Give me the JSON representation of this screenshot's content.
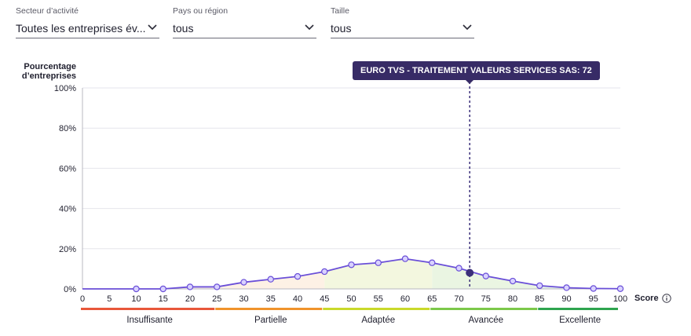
{
  "filters": [
    {
      "label": "Secteur d’activité",
      "value": "Toutes les entreprises év..."
    },
    {
      "label": "Pays ou région",
      "value": "tous"
    },
    {
      "label": "Taille",
      "value": "tous"
    }
  ],
  "tooltip": {
    "text": "EURO TVS - TRAITEMENT VALEURS SERVICES SAS: 72"
  },
  "score_label": "Score",
  "icons": {
    "chevron": "chevron-down-icon",
    "info": "info-icon"
  },
  "colors": {
    "line": "#6a4fd8",
    "marker_fill": "#d9d2ff",
    "highlight": "#3b2f7a",
    "tooltip_bg": "#372b66"
  },
  "chart_data": {
    "type": "area",
    "ylabel": "Pourcentage d’entreprises",
    "xlabel": "Score",
    "ylim": [
      0,
      100
    ],
    "xlim": [
      0,
      100
    ],
    "y_ticks": [
      "0%",
      "20%",
      "40%",
      "60%",
      "80%",
      "100%"
    ],
    "x_ticks": [
      0,
      5,
      10,
      15,
      20,
      25,
      30,
      35,
      40,
      45,
      50,
      55,
      60,
      65,
      70,
      75,
      80,
      85,
      90,
      95,
      100
    ],
    "grid": true,
    "series": [
      {
        "x": [
          0,
          5,
          10,
          15,
          20,
          25,
          30,
          35,
          40,
          45,
          50,
          55,
          60,
          65,
          70,
          75,
          80,
          85,
          90,
          95,
          100
        ],
        "y": [
          0,
          0,
          0,
          0,
          1,
          1,
          3.3,
          4.8,
          6.2,
          8.6,
          12,
          13,
          15,
          13,
          10.3,
          6.4,
          3.9,
          1.6,
          0.6,
          0.2,
          0.1
        ],
        "markers": [
          10,
          15,
          20,
          25,
          30,
          35,
          40,
          45,
          50,
          55,
          60,
          65,
          70,
          75,
          80,
          85,
          90,
          95,
          100
        ]
      }
    ],
    "highlight": {
      "x": 72,
      "y": 8
    },
    "bands": [
      {
        "label": "Insuffisante",
        "from": 0,
        "to": 25,
        "color": "#e8573a",
        "fill": "#fdeee8"
      },
      {
        "label": "Partielle",
        "from": 25,
        "to": 45,
        "color": "#f0932b",
        "fill": "#fdf0e2"
      },
      {
        "label": "Adaptée",
        "from": 45,
        "to": 65,
        "color": "#c9d92a",
        "fill": "#f2f6dc"
      },
      {
        "label": "Avancée",
        "from": 65,
        "to": 85,
        "color": "#7cc84a",
        "fill": "#e8f4df"
      },
      {
        "label": "Excellente",
        "from": 85,
        "to": 100,
        "color": "#2ea44f",
        "fill": "#e0f1e4"
      }
    ]
  }
}
